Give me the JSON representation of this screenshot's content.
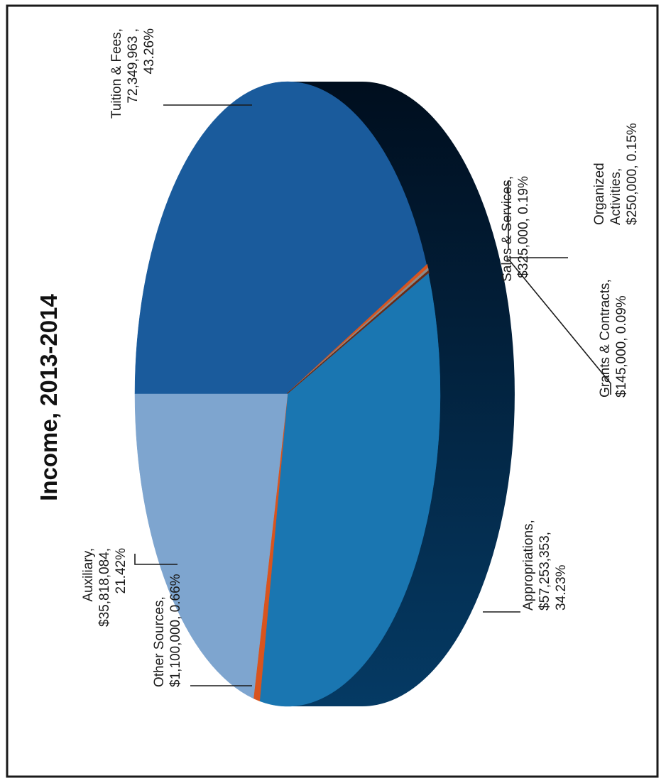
{
  "chart_data": {
    "type": "pie",
    "title": "Income, 2013-2014",
    "unit": "$",
    "slices": [
      {
        "name": "Tuition & Fees",
        "value": 72349963,
        "percent": 43.26,
        "label_lines": [
          "Tuition & Fees,",
          "72,349,963 ,",
          "43.26%"
        ],
        "color": "#1a5b9c"
      },
      {
        "name": "Sales & Services",
        "value": 325000,
        "percent": 0.19,
        "label_lines": [
          "Sales & Services,",
          "$325,000, 0.19%"
        ],
        "color": "#d9541e"
      },
      {
        "name": "Organized Activities",
        "value": 250000,
        "percent": 0.15,
        "label_lines": [
          "Organized",
          "Activities,",
          "$250,000, 0.15%"
        ],
        "color": "#8a8a8a"
      },
      {
        "name": "Grants & Contracts",
        "value": 145000,
        "percent": 0.09,
        "label_lines": [
          "Grants & Contracts,",
          "$145,000, 0.09%"
        ],
        "color": "#6b2a14"
      },
      {
        "name": "Appropriations",
        "value": 57253353,
        "percent": 34.23,
        "label_lines": [
          "Appropriations,",
          "$57,253,353,",
          "34.23%"
        ],
        "color": "#1a76b1"
      },
      {
        "name": "Other Sources",
        "value": 1100000,
        "percent": 0.66,
        "label_lines": [
          "Other Sources,",
          "$1,100,000, 0.66%"
        ],
        "color": "#d9541e"
      },
      {
        "name": "Auxiliary",
        "value": 35818084,
        "percent": 21.42,
        "label_lines": [
          "Auxiliary,",
          "$35,818,084,",
          "21.42%"
        ],
        "color": "#7ea5cf"
      }
    ],
    "side_colors": {
      "dark": "#000e1e",
      "light": "#053a64"
    }
  }
}
